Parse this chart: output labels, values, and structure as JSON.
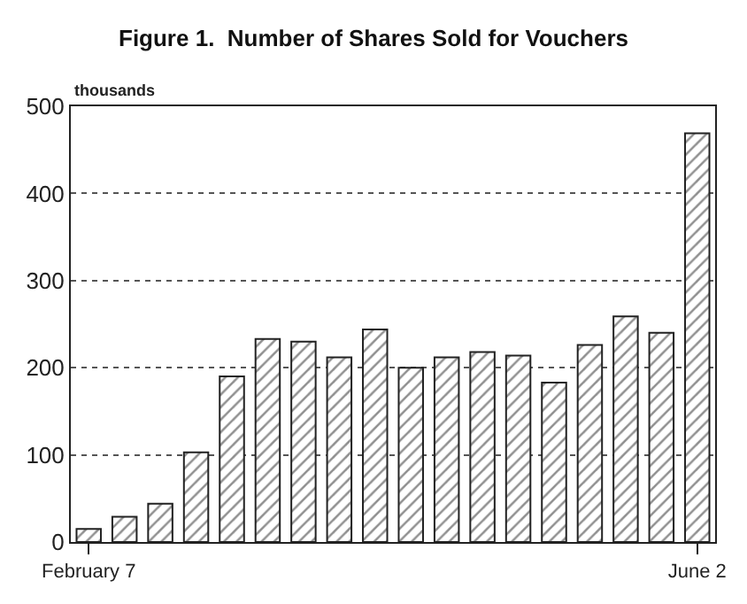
{
  "chart_data": {
    "type": "bar",
    "title": "Figure 1.  Number of Shares Sold for Vouchers",
    "ylabel": "thousands",
    "categories": [
      "February 7",
      null,
      null,
      null,
      null,
      null,
      null,
      null,
      null,
      null,
      null,
      null,
      null,
      null,
      null,
      null,
      null,
      "June 2"
    ],
    "values": [
      15,
      29,
      44,
      103,
      190,
      233,
      230,
      212,
      244,
      200,
      212,
      218,
      214,
      183,
      226,
      259,
      240,
      469
    ],
    "color": "#222222",
    "ylim": [
      0,
      500
    ],
    "yticks": [
      0,
      100,
      200,
      300,
      400,
      500
    ],
    "grid": "y"
  }
}
